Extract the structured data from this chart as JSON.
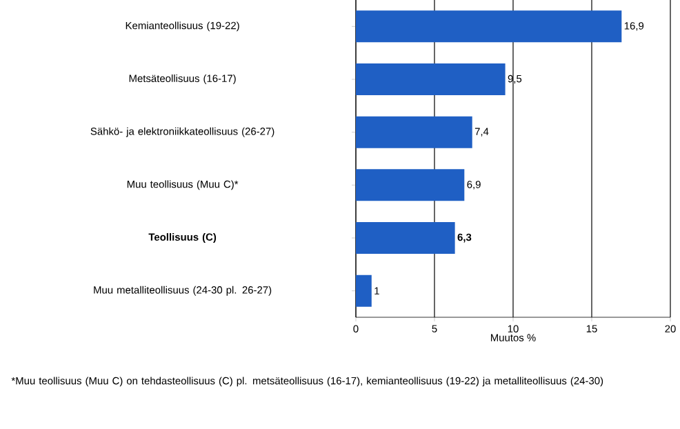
{
  "chart_data": {
    "type": "bar",
    "orientation": "horizontal",
    "categories": [
      "Kemianteollisuus (19-22)",
      "Metsäteollisuus (16-17)",
      "Sähkö- ja elektroniikkateollisuus (26-27)",
      "Muu teollisuus (Muu C)*",
      "**Teollisuus (C)**",
      "Muu metalliteollisuus (24-30 pl. 26-27)"
    ],
    "values": [
      16.9,
      9.5,
      7.4,
      6.9,
      6.3,
      1
    ],
    "value_labels": [
      "16,9",
      "9,5",
      "7,4",
      "6,9",
      "**6,3**",
      "1"
    ],
    "color": "#1f5fc4",
    "xlim": [
      0,
      20
    ],
    "xticks": [
      0,
      5,
      10,
      15,
      20
    ],
    "grid": "x",
    "xlabel": "Muutos %",
    "annotations": [
      "*Muu teollisuus (Muu C) on tehdasteollisuus (C) pl. metsäteollisuus (16-17), kemianteollisuus (19-22) ja metalliteollisuus (24-30)"
    ]
  }
}
